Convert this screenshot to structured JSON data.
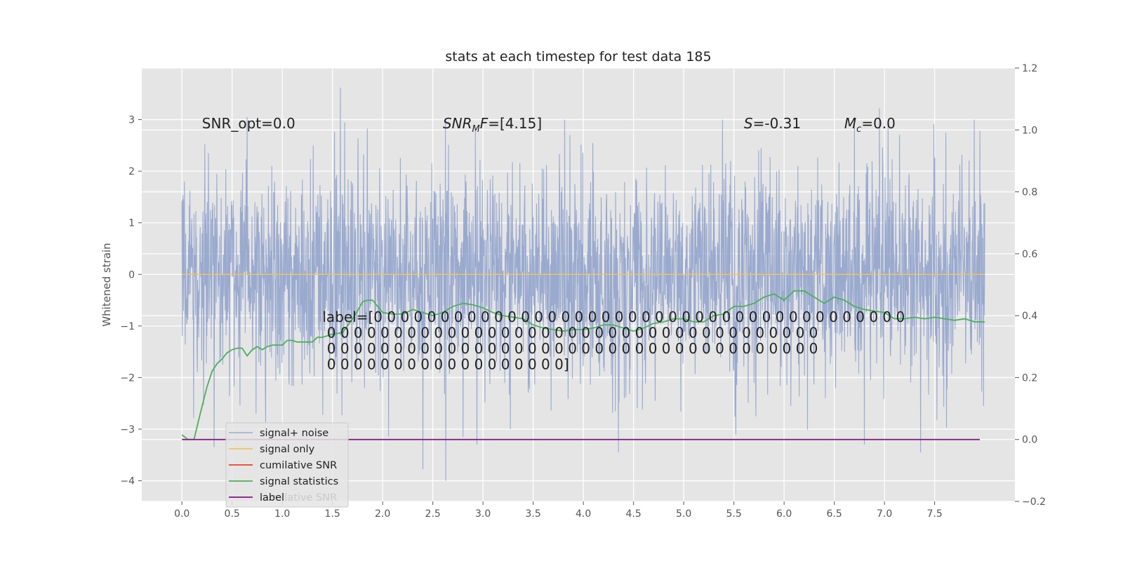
{
  "chart_data": {
    "type": "line",
    "title": "stats at each timestep for test data 185",
    "ylabel": "Whitened strain",
    "y2label": "",
    "xlim": [
      -0.4,
      8.3
    ],
    "ylim": [
      -4.4,
      4.0
    ],
    "y2lim": [
      -0.2,
      1.2
    ],
    "grid": true,
    "x_ticks": [
      "0.0",
      "0.5",
      "1.0",
      "1.5",
      "2.0",
      "2.5",
      "3.0",
      "3.5",
      "4.0",
      "4.5",
      "5.0",
      "5.5",
      "6.0",
      "6.5",
      "7.0",
      "7.5"
    ],
    "x_tick_values": [
      0,
      0.5,
      1,
      1.5,
      2,
      2.5,
      3,
      3.5,
      4,
      4.5,
      5,
      5.5,
      6,
      6.5,
      7,
      7.5
    ],
    "y_ticks": [
      "−4",
      "−3",
      "−2",
      "−1",
      "0",
      "1",
      "2",
      "3"
    ],
    "y_tick_values": [
      -4,
      -3,
      -2,
      -1,
      0,
      1,
      2,
      3
    ],
    "y2_ticks": [
      "−0.2",
      "0.0",
      "0.2",
      "0.4",
      "0.6",
      "0.8",
      "1.0",
      "1.2"
    ],
    "y2_tick_values": [
      -0.2,
      0,
      0.2,
      0.4,
      0.6,
      0.8,
      1.0,
      1.2
    ],
    "legend_placement": "lower-left",
    "series": [
      {
        "name": "signal+ noise",
        "axis": "left",
        "color": "#8da0cb",
        "x_range": [
          0,
          8.0
        ],
        "amplitude_std": 1.0,
        "peaks": [
          [
            1.58,
            3.62
          ],
          [
            6.95,
            3.22
          ],
          [
            6.7,
            3.05
          ],
          [
            0.65,
            3.05
          ],
          [
            7.95,
            2.78
          ],
          [
            2.63,
            -4.0
          ],
          [
            2.4,
            -3.78
          ],
          [
            4.35,
            -3.45
          ],
          [
            7.36,
            -3.45
          ],
          [
            0.32,
            -3.35
          ],
          [
            6.8,
            -3.3
          ],
          [
            2.8,
            -3.15
          ],
          [
            5.52,
            -3.1
          ]
        ]
      },
      {
        "name": "signal only",
        "axis": "left",
        "color": "#f2c35e",
        "x": [
          0,
          8.0
        ],
        "y": [
          0,
          0
        ]
      },
      {
        "name": "cumilative SNR",
        "axis": "right",
        "color": "#e8412a",
        "x": [],
        "y": []
      },
      {
        "name": "signal statistics",
        "axis": "right",
        "color": "#4caf5a",
        "x": [
          0,
          0.06,
          0.12,
          0.18,
          0.25,
          0.3,
          0.35,
          0.4,
          0.45,
          0.5,
          0.55,
          0.6,
          0.65,
          0.7,
          0.75,
          0.8,
          0.85,
          0.9,
          0.95,
          1.0,
          1.05,
          1.1,
          1.15,
          1.2,
          1.25,
          1.3,
          1.35,
          1.4,
          1.5,
          1.6,
          1.7,
          1.75,
          1.8,
          1.85,
          1.9,
          1.95,
          2.0,
          2.1,
          2.2,
          2.3,
          2.4,
          2.5,
          2.6,
          2.7,
          2.8,
          2.9,
          3.0,
          3.1,
          3.2,
          3.3,
          3.4,
          3.5,
          3.6,
          3.7,
          3.8,
          3.9,
          4.0,
          4.1,
          4.2,
          4.3,
          4.4,
          4.5,
          4.6,
          4.7,
          4.8,
          4.9,
          5.0,
          5.1,
          5.2,
          5.3,
          5.4,
          5.5,
          5.6,
          5.7,
          5.8,
          5.9,
          6.0,
          6.1,
          6.2,
          6.3,
          6.4,
          6.5,
          6.6,
          6.7,
          6.8,
          6.9,
          7.0,
          7.1,
          7.2,
          7.3,
          7.4,
          7.5,
          7.6,
          7.7,
          7.8,
          7.9,
          8.0
        ],
        "y": [
          0.015,
          0.0,
          0.0,
          0.08,
          0.17,
          0.22,
          0.245,
          0.26,
          0.28,
          0.29,
          0.295,
          0.295,
          0.27,
          0.29,
          0.3,
          0.29,
          0.3,
          0.305,
          0.305,
          0.305,
          0.32,
          0.32,
          0.315,
          0.315,
          0.315,
          0.315,
          0.33,
          0.33,
          0.34,
          0.345,
          0.39,
          0.415,
          0.445,
          0.45,
          0.45,
          0.43,
          0.41,
          0.405,
          0.405,
          0.42,
          0.41,
          0.4,
          0.41,
          0.43,
          0.44,
          0.435,
          0.425,
          0.41,
          0.4,
          0.395,
          0.39,
          0.37,
          0.36,
          0.355,
          0.35,
          0.355,
          0.355,
          0.36,
          0.37,
          0.37,
          0.36,
          0.35,
          0.36,
          0.375,
          0.38,
          0.39,
          0.39,
          0.38,
          0.38,
          0.4,
          0.405,
          0.43,
          0.43,
          0.44,
          0.46,
          0.47,
          0.45,
          0.48,
          0.48,
          0.46,
          0.44,
          0.46,
          0.45,
          0.43,
          0.42,
          0.415,
          0.41,
          0.39,
          0.39,
          0.395,
          0.39,
          0.395,
          0.39,
          0.385,
          0.39,
          0.38,
          0.38
        ]
      },
      {
        "name": "label",
        "axis": "right",
        "color": "#7b1a7e",
        "x": [
          0,
          7.95
        ],
        "y": [
          0,
          0
        ]
      }
    ],
    "annotations": [
      {
        "id": "snr-opt",
        "text": "SNR_opt=0.0",
        "x": 0.2,
        "y": 2.83
      },
      {
        "id": "snr-mf",
        "text": "SNR",
        "sub": "M",
        "rest": "F=[4.15]",
        "x": 2.6,
        "y": 2.83
      },
      {
        "id": "stat-s",
        "text": "S",
        "rest": "=-0.31",
        "x": 5.6,
        "y": 2.83
      },
      {
        "id": "mass-c",
        "text": "M",
        "sub": "c",
        "rest": "=0.0",
        "x": 6.6,
        "y": 2.83
      }
    ],
    "label_text_lines": [
      "label=[0 0 0 0 0 0 0 0 0 0 0 0 0 0 0 0 0 0 0 0 0 0 0 0 0 0 0 0 0 0 0 0 0 0 0 0 0 0 0 0",
      " 0 0 0 0 0 0 0 0 0 0 0 0 0 0 0 0 0 0 0 0 0 0 0 0 0 0 0 0 0 0 0 0 0 0 0 0 0",
      " 0 0 0 0 0 0 0 0 0 0 0 0 0 0 0 0 0 0 0 0 0 0 0 0 0 0 0 0 0 0 0 0 0 0 0 0 0",
      " 0 0 0 0 0 0 0 0 0 0 0 0 0 0 0 0 0 0]"
    ],
    "ghost_legend_text": "cumilative SNR"
  }
}
